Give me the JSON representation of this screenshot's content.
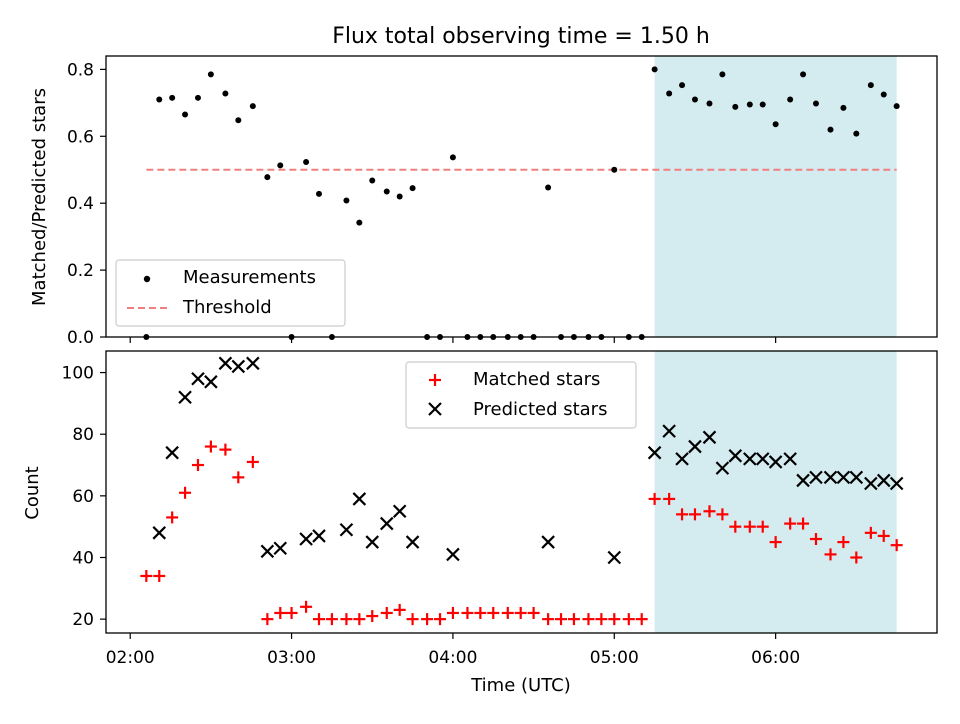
{
  "figure": {
    "title": "Flux total observing time = 1.50 h",
    "xlabel": "Time (UTC)",
    "xticks": [
      {
        "value": 2,
        "label": "02:00"
      },
      {
        "value": 3,
        "label": "03:00"
      },
      {
        "value": 4,
        "label": "04:00"
      },
      {
        "value": 5,
        "label": "05:00"
      },
      {
        "value": 6,
        "label": "06:00"
      }
    ],
    "xlim": [
      1.85,
      7.0
    ],
    "shaded_region": {
      "x_start": 5.25,
      "x_end": 6.75,
      "color": "#d4ebf0"
    }
  },
  "chart_data": [
    {
      "type": "scatter",
      "ylabel": "Matched/Predicted stars",
      "ylim": [
        0,
        0.84
      ],
      "yticks": [
        {
          "value": 0.0,
          "label": "0.0"
        },
        {
          "value": 0.2,
          "label": "0.2"
        },
        {
          "value": 0.4,
          "label": "0.4"
        },
        {
          "value": 0.6,
          "label": "0.6"
        },
        {
          "value": 0.8,
          "label": "0.8"
        }
      ],
      "legend": {
        "position": "lower-left",
        "measurements_label": "Measurements",
        "threshold_label": "Threshold"
      },
      "threshold": {
        "value": 0.5,
        "x_start": 2.1,
        "x_end": 6.75,
        "color": "#f08080"
      },
      "series": [
        {
          "name": "Measurements",
          "color": "#000000",
          "points": [
            [
              2.1,
              0.0
            ],
            [
              2.18,
              0.71
            ],
            [
              2.26,
              0.715
            ],
            [
              2.34,
              0.665
            ],
            [
              2.42,
              0.715
            ],
            [
              2.5,
              0.785
            ],
            [
              2.59,
              0.728
            ],
            [
              2.67,
              0.648
            ],
            [
              2.76,
              0.69
            ],
            [
              2.85,
              0.478
            ],
            [
              2.93,
              0.513
            ],
            [
              3.0,
              0.0
            ],
            [
              3.09,
              0.523
            ],
            [
              3.17,
              0.428
            ],
            [
              3.25,
              0.0
            ],
            [
              3.34,
              0.408
            ],
            [
              3.42,
              0.342
            ],
            [
              3.5,
              0.468
            ],
            [
              3.59,
              0.435
            ],
            [
              3.67,
              0.42
            ],
            [
              3.75,
              0.445
            ],
            [
              3.84,
              0.0
            ],
            [
              3.92,
              0.0
            ],
            [
              4.0,
              0.537
            ],
            [
              4.09,
              0.0
            ],
            [
              4.17,
              0.0
            ],
            [
              4.25,
              0.0
            ],
            [
              4.34,
              0.0
            ],
            [
              4.42,
              0.0
            ],
            [
              4.5,
              0.0
            ],
            [
              4.59,
              0.447
            ],
            [
              4.67,
              0.0
            ],
            [
              4.75,
              0.0
            ],
            [
              4.84,
              0.0
            ],
            [
              4.92,
              0.0
            ],
            [
              5.0,
              0.5
            ],
            [
              5.09,
              0.0
            ],
            [
              5.17,
              0.0
            ],
            [
              5.25,
              0.8
            ],
            [
              5.34,
              0.728
            ],
            [
              5.42,
              0.753
            ],
            [
              5.5,
              0.71
            ],
            [
              5.59,
              0.698
            ],
            [
              5.67,
              0.785
            ],
            [
              5.75,
              0.688
            ],
            [
              5.84,
              0.695
            ],
            [
              5.92,
              0.695
            ],
            [
              6.0,
              0.636
            ],
            [
              6.09,
              0.71
            ],
            [
              6.17,
              0.785
            ],
            [
              6.25,
              0.698
            ],
            [
              6.34,
              0.62
            ],
            [
              6.42,
              0.685
            ],
            [
              6.5,
              0.608
            ],
            [
              6.59,
              0.753
            ],
            [
              6.67,
              0.725
            ],
            [
              6.75,
              0.69
            ]
          ]
        }
      ]
    },
    {
      "type": "scatter",
      "ylabel": "Count",
      "ylim": [
        15.5,
        107
      ],
      "yticks": [
        {
          "value": 20,
          "label": "20"
        },
        {
          "value": 40,
          "label": "40"
        },
        {
          "value": 60,
          "label": "60"
        },
        {
          "value": 80,
          "label": "80"
        },
        {
          "value": 100,
          "label": "100"
        }
      ],
      "legend": {
        "position": "top-center",
        "matched_label": "Matched stars",
        "predicted_label": "Predicted stars"
      },
      "series": [
        {
          "name": "Matched stars",
          "color": "#ff0000",
          "marker": "plus",
          "points": [
            [
              2.1,
              34
            ],
            [
              2.18,
              34
            ],
            [
              2.26,
              53
            ],
            [
              2.34,
              61
            ],
            [
              2.42,
              70
            ],
            [
              2.5,
              76
            ],
            [
              2.59,
              75
            ],
            [
              2.67,
              66
            ],
            [
              2.76,
              71
            ],
            [
              2.85,
              20
            ],
            [
              2.93,
              22
            ],
            [
              3.0,
              22
            ],
            [
              3.09,
              24
            ],
            [
              3.17,
              20
            ],
            [
              3.25,
              20
            ],
            [
              3.34,
              20
            ],
            [
              3.42,
              20
            ],
            [
              3.5,
              21
            ],
            [
              3.59,
              22
            ],
            [
              3.67,
              23
            ],
            [
              3.75,
              20
            ],
            [
              3.84,
              20
            ],
            [
              3.92,
              20
            ],
            [
              4.0,
              22
            ],
            [
              4.09,
              22
            ],
            [
              4.17,
              22
            ],
            [
              4.25,
              22
            ],
            [
              4.34,
              22
            ],
            [
              4.42,
              22
            ],
            [
              4.5,
              22
            ],
            [
              4.59,
              20
            ],
            [
              4.67,
              20
            ],
            [
              4.75,
              20
            ],
            [
              4.84,
              20
            ],
            [
              4.92,
              20
            ],
            [
              5.0,
              20
            ],
            [
              5.09,
              20
            ],
            [
              5.17,
              20
            ],
            [
              5.25,
              59
            ],
            [
              5.34,
              59
            ],
            [
              5.42,
              54
            ],
            [
              5.5,
              54
            ],
            [
              5.59,
              55
            ],
            [
              5.67,
              54
            ],
            [
              5.75,
              50
            ],
            [
              5.84,
              50
            ],
            [
              5.92,
              50
            ],
            [
              6.0,
              45
            ],
            [
              6.09,
              51
            ],
            [
              6.17,
              51
            ],
            [
              6.25,
              46
            ],
            [
              6.34,
              41
            ],
            [
              6.42,
              45
            ],
            [
              6.5,
              40
            ],
            [
              6.59,
              48
            ],
            [
              6.67,
              47
            ],
            [
              6.75,
              44
            ]
          ]
        },
        {
          "name": "Predicted stars",
          "color": "#000000",
          "marker": "x",
          "points": [
            [
              2.18,
              48
            ],
            [
              2.26,
              74
            ],
            [
              2.34,
              92
            ],
            [
              2.42,
              98
            ],
            [
              2.5,
              97
            ],
            [
              2.59,
              103
            ],
            [
              2.67,
              102
            ],
            [
              2.76,
              103
            ],
            [
              2.85,
              42
            ],
            [
              2.93,
              43
            ],
            [
              3.09,
              46
            ],
            [
              3.17,
              47
            ],
            [
              3.34,
              49
            ],
            [
              3.42,
              59
            ],
            [
              3.5,
              45
            ],
            [
              3.59,
              51
            ],
            [
              3.67,
              55
            ],
            [
              3.75,
              45
            ],
            [
              4.0,
              41
            ],
            [
              4.59,
              45
            ],
            [
              5.0,
              40
            ],
            [
              5.25,
              74
            ],
            [
              5.34,
              81
            ],
            [
              5.42,
              72
            ],
            [
              5.5,
              76
            ],
            [
              5.59,
              79
            ],
            [
              5.67,
              69
            ],
            [
              5.75,
              73
            ],
            [
              5.84,
              72
            ],
            [
              5.92,
              72
            ],
            [
              6.0,
              71
            ],
            [
              6.09,
              72
            ],
            [
              6.17,
              65
            ],
            [
              6.25,
              66
            ],
            [
              6.34,
              66
            ],
            [
              6.42,
              66
            ],
            [
              6.5,
              66
            ],
            [
              6.59,
              64
            ],
            [
              6.67,
              65
            ],
            [
              6.75,
              64
            ]
          ]
        }
      ]
    }
  ]
}
